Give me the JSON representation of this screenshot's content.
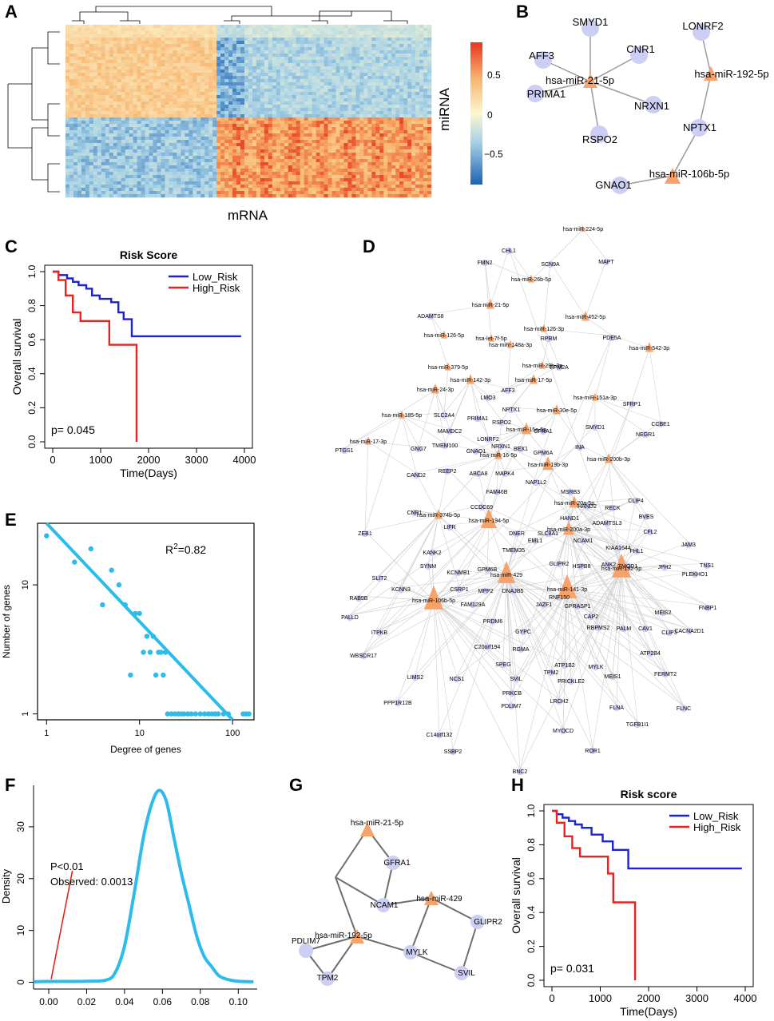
{
  "panel_labels": [
    "A",
    "B",
    "C",
    "D",
    "E",
    "F",
    "G",
    "H"
  ],
  "colors": {
    "gene_node": "#cccef4",
    "mirna_node": "#f5a26b",
    "km_low": "#1c22d0",
    "km_high": "#e8221f",
    "accent": "#2bbcec",
    "edge": "#8a8a8a"
  },
  "panel_a": {
    "xlabel": "mRNA",
    "ylabel": "miRNA",
    "colorbar_ticks": [
      "0.5",
      "0",
      "−0.5"
    ],
    "colorbar_range": [
      -0.85,
      0.85
    ]
  },
  "panel_b": {
    "genes": [
      "SMYD1",
      "AFF3",
      "CNR1",
      "PRIMA1",
      "NRXN1",
      "RSPO2",
      "LONRF2",
      "NPTX1",
      "GNAO1"
    ],
    "mirnas": [
      "hsa-miR-21-5p",
      "hsa-miR-192-5p",
      "hsa-miR-106b-5p"
    ]
  },
  "panel_d": {
    "mirnas": [
      "hsa-miR-224-5p",
      "hsa-miR-26b-5p",
      "hsa-miR-21-5p",
      "hsa-miR-452-5p",
      "hsa-miR-126-5p",
      "hsa-let-7f-5p",
      "hsa-miR-126-3p",
      "hsa-miR-148a-3p",
      "hsa-miR-542-3p",
      "hsa-miR-29b-3p",
      "hsa-miR-379-5p",
      "hsa-miR-142-3p",
      "hsa-miR-17-5p",
      "hsa-miR-24-3p",
      "hsa-miR-151a-3p",
      "hsa-miR-30e-5p",
      "hsa-miR-185-5p",
      "hsa-miR-15a-5p",
      "hsa-miR-17-3p",
      "hsa-miR-200b-3p",
      "hsa-miR-16-5p",
      "hsa-miR-19b-3p",
      "hsa-miR-20a-5p",
      "hsa-miR-374b-5p",
      "hsa-miR-194-5p",
      "hsa-miR-200a-3p",
      "hsa-miR-192-5p",
      "hsa-miR-429",
      "hsa-miR-141-3p",
      "hsa-miR-106b-5p"
    ],
    "genes": [
      "CHL1",
      "FMN2",
      "SCN9A",
      "MAPT",
      "ADAMTS8",
      "PDE5A",
      "RPRM",
      "EPM2A",
      "AFF3",
      "LMO3",
      "SFRP1",
      "SLC2A4",
      "PRIMA1",
      "NPTX1",
      "RSPO2",
      "SMYD1",
      "CCBE1",
      "MAMDC2",
      "GFRA1",
      "LONRF2",
      "NRXN1",
      "BEX1",
      "GNG7",
      "TMEM100",
      "GNAO1",
      "GPM6A",
      "INA",
      "NEGR1",
      "PTGS1",
      "CAND2",
      "REEP2",
      "ABCA8",
      "MAPK4",
      "NAP1L2",
      "MSRB3",
      "CLIP4",
      "FAM46B",
      "HAND2",
      "RECK",
      "BVES",
      "CCDC69",
      "HAND1",
      "CNR1",
      "LIFR",
      "DNER",
      "SLC8A1",
      "ADAMTSL3",
      "ZEB1",
      "EML1",
      "NCAM1",
      "CFL2",
      "JAM3",
      "KIAA1644",
      "FHL1",
      "TNS1",
      "KANK2",
      "TMEM35",
      "SYNM",
      "KCNMB1",
      "GLIPR2",
      "HSPB8",
      "ANK2",
      "TMOD1",
      "JPH2",
      "PLEKHO1",
      "GPM6B",
      "SLIT2",
      "KCNN3",
      "CSRP1",
      "MPP2",
      "DNAJB5",
      "RNF150",
      "FAM129A",
      "JAZF1",
      "GPRASP1",
      "RAB9B",
      "CAP2",
      "MEIS2",
      "PRDM6",
      "FNBP1",
      "PALLD",
      "GYPC",
      "RBPMS2",
      "PALM",
      "CAV1",
      "CACNA2D1",
      "ITPKB",
      "C20orf194",
      "CLIP3",
      "RGMA",
      "MYLK",
      "ATP2B4",
      "WBSCR17",
      "SPEG",
      "TPM2",
      "ATP1B2",
      "LIMS2",
      "NCS1",
      "SVIL",
      "PRICKLE2",
      "MEIS1",
      "FERMT2",
      "PPP1R12B",
      "PRKCB",
      "LRCH2",
      "FLNA",
      "PDLIM7",
      "FLNC",
      "C14orf132",
      "TGFB1I1",
      "MYOCD",
      "SSBP2",
      "ROR1",
      "BNC2"
    ]
  },
  "panel_e": {
    "xlabel": "Degree of genes",
    "ylabel": "Number of genes",
    "annotation": "R²=0.82",
    "x_ticks": [
      "1",
      "10",
      "100"
    ],
    "y_ticks": [
      "1",
      "10"
    ]
  },
  "panel_f": {
    "ylabel": "Density",
    "annotation_p": "P<0.01",
    "annotation_obs": "Observed: 0.0013",
    "x_ticks": [
      "0.00",
      "0.02",
      "0.04",
      "0.06",
      "0.08",
      "0.10"
    ],
    "y_ticks": [
      "0",
      "10",
      "20",
      "30"
    ]
  },
  "panel_g": {
    "genes": [
      "GFRA1",
      "NCAM1",
      "GLIPR2",
      "PDLIM7",
      "MYLK",
      "SVIL",
      "TPM2"
    ],
    "mirnas": [
      "hsa-miR-21-5p",
      "hsa-miR-429",
      "hsa-miR-192-5p"
    ]
  },
  "chart_data": [
    {
      "type": "heatmap",
      "id": "A",
      "title": "",
      "xlabel": "mRNA",
      "ylabel": "miRNA",
      "colorbar_ticks": [
        0.5,
        0,
        -0.5
      ],
      "clusters": {
        "row_groups": 2,
        "col_groups": 2,
        "pattern": "top rows positive with first column group, negative with second; bottom rows reversed"
      }
    },
    {
      "type": "line",
      "id": "C",
      "title": "Risk Score",
      "xlabel": "Time(Days)",
      "ylabel": "Overall survival",
      "xlim": [
        0,
        4000
      ],
      "ylim": [
        0,
        1
      ],
      "x_ticks": [
        0,
        1000,
        2000,
        3000,
        4000
      ],
      "y_ticks": [
        0.0,
        0.2,
        0.4,
        0.6,
        0.8,
        1.0
      ],
      "pvalue_text": "p= 0.045",
      "series": [
        {
          "name": "Low_Risk",
          "color": "#1c22d0",
          "steps": [
            [
              0,
              1.0
            ],
            [
              120,
              0.98
            ],
            [
              300,
              0.96
            ],
            [
              420,
              0.94
            ],
            [
              540,
              0.92
            ],
            [
              700,
              0.9
            ],
            [
              820,
              0.86
            ],
            [
              980,
              0.84
            ],
            [
              1220,
              0.82
            ],
            [
              1370,
              0.76
            ],
            [
              1480,
              0.72
            ],
            [
              1650,
              0.62
            ],
            [
              3930,
              0.62
            ]
          ]
        },
        {
          "name": "High_Risk",
          "color": "#e8221f",
          "steps": [
            [
              0,
              1.0
            ],
            [
              120,
              0.95
            ],
            [
              270,
              0.86
            ],
            [
              420,
              0.76
            ],
            [
              580,
              0.71
            ],
            [
              1180,
              0.57
            ],
            [
              1750,
              0.57
            ],
            [
              1750,
              0.0
            ]
          ]
        }
      ]
    },
    {
      "type": "scatter",
      "id": "E",
      "title": "",
      "xlabel": "Degree of genes",
      "ylabel": "Number of genes",
      "x_scale": "log",
      "y_scale": "log",
      "xlim": [
        0.8,
        170
      ],
      "ylim": [
        0.9,
        30
      ],
      "annotation": "R²=0.82",
      "x": [
        1,
        2,
        3,
        4,
        5,
        6,
        7,
        8,
        9,
        10,
        11,
        12,
        13,
        14,
        15,
        16,
        17,
        18,
        19,
        20,
        22,
        24,
        26,
        28,
        30,
        33,
        36,
        40,
        45,
        50,
        55,
        60,
        65,
        70,
        80,
        90,
        130,
        140,
        150
      ],
      "y": [
        24,
        15,
        19,
        7,
        13,
        10,
        7,
        2,
        6,
        6,
        3,
        4,
        3,
        4,
        2,
        3,
        3,
        2,
        3,
        1,
        1,
        1,
        1,
        1,
        1,
        1,
        1,
        1,
        1,
        1,
        1,
        1,
        1,
        1,
        1,
        1,
        1,
        1,
        1
      ],
      "fit_line": {
        "x": [
          1,
          100
        ],
        "y": [
          30,
          0.9
        ]
      }
    },
    {
      "type": "line",
      "id": "F",
      "title": "",
      "xlabel": "",
      "ylabel": "Density",
      "xlim": [
        -0.008,
        0.11
      ],
      "ylim": [
        -1,
        38
      ],
      "x_ticks": [
        0.0,
        0.02,
        0.04,
        0.06,
        0.08,
        0.1
      ],
      "y_ticks": [
        0,
        10,
        20,
        30
      ],
      "observed": 0.0013,
      "annotation_p": "P<0.01",
      "series": [
        {
          "name": "density",
          "color": "#2bbcec",
          "x": [
            -0.008,
            0.0,
            0.02,
            0.03,
            0.035,
            0.04,
            0.045,
            0.05,
            0.054,
            0.058,
            0.062,
            0.066,
            0.07,
            0.074,
            0.078,
            0.082,
            0.086,
            0.09,
            0.095,
            0.1,
            0.108
          ],
          "y": [
            0.1,
            0.15,
            0.2,
            0.4,
            1.8,
            7,
            17,
            28,
            34,
            37,
            35,
            28,
            21,
            15,
            9,
            5,
            3,
            1.2,
            0.5,
            0.2,
            0.1
          ]
        }
      ]
    },
    {
      "type": "line",
      "id": "H",
      "title": "Risk score",
      "xlabel": "Time(Days)",
      "ylabel": "Overall survival",
      "xlim": [
        0,
        4000
      ],
      "ylim": [
        0,
        1
      ],
      "x_ticks": [
        0,
        1000,
        2000,
        3000,
        4000
      ],
      "y_ticks": [
        0.0,
        0.2,
        0.4,
        0.6,
        0.8,
        1.0
      ],
      "pvalue_text": "p= 0.031",
      "series": [
        {
          "name": "Low_Risk",
          "color": "#1c22d0",
          "steps": [
            [
              0,
              1.0
            ],
            [
              100,
              0.98
            ],
            [
              220,
              0.96
            ],
            [
              350,
              0.94
            ],
            [
              480,
              0.92
            ],
            [
              620,
              0.9
            ],
            [
              820,
              0.86
            ],
            [
              1050,
              0.82
            ],
            [
              1260,
              0.77
            ],
            [
              1580,
              0.66
            ],
            [
              3930,
              0.66
            ]
          ]
        },
        {
          "name": "High_Risk",
          "color": "#e8221f",
          "steps": [
            [
              0,
              1.0
            ],
            [
              100,
              0.93
            ],
            [
              260,
              0.85
            ],
            [
              420,
              0.78
            ],
            [
              580,
              0.73
            ],
            [
              1160,
              0.63
            ],
            [
              1270,
              0.46
            ],
            [
              1720,
              0.46
            ],
            [
              1720,
              0.0
            ]
          ]
        }
      ]
    }
  ]
}
